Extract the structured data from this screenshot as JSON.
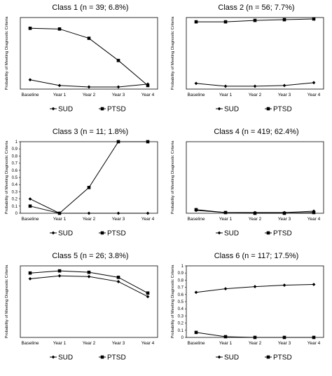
{
  "chart_data": [
    {
      "type": "line",
      "title": "Class 1 (n = 39; 6.8%)",
      "xlabel": "",
      "ylabel": "Probability of Meeting Diagnostic Criteria",
      "categories": [
        "Baseline",
        "Year 1",
        "Year 2",
        "Year 3",
        "Year 4"
      ],
      "ylim": [
        0,
        1
      ],
      "yticks": [],
      "series": [
        {
          "name": "SUD",
          "marker": "diamond",
          "values": [
            0.13,
            0.05,
            0.03,
            0.03,
            0.07
          ]
        },
        {
          "name": "PTSD",
          "marker": "square",
          "values": [
            0.85,
            0.84,
            0.71,
            0.4,
            0.05
          ]
        }
      ],
      "legend": "bottom"
    },
    {
      "type": "line",
      "title": "Class 2 (n = 56; 7.7%)",
      "xlabel": "",
      "ylabel": "Probability of Meeting Diagnostic Criteria",
      "categories": [
        "Baseline",
        "Year 1",
        "Year 2",
        "Year 3",
        "Year 4"
      ],
      "ylim": [
        0,
        1
      ],
      "yticks": [],
      "series": [
        {
          "name": "SUD",
          "marker": "diamond",
          "values": [
            0.08,
            0.04,
            0.04,
            0.05,
            0.09
          ]
        },
        {
          "name": "PTSD",
          "marker": "square",
          "values": [
            0.94,
            0.94,
            0.96,
            0.97,
            0.98
          ]
        }
      ],
      "legend": "bottom"
    },
    {
      "type": "line",
      "title": "Class 3 (n = 11; 1.8%)",
      "xlabel": "",
      "ylabel": "Probability of Meeting Diagnostic Criteria",
      "categories": [
        "Baseline",
        "Year 1",
        "Year 2",
        "Year 3",
        "Year 4"
      ],
      "ylim": [
        0,
        1
      ],
      "yticks": [
        "0",
        "0.1",
        "0.2",
        "0.3",
        "0.4",
        "0.5",
        "0.6",
        "0.7",
        "0.8",
        "0.9",
        "1"
      ],
      "series": [
        {
          "name": "SUD",
          "marker": "diamond",
          "values": [
            0.2,
            0.0,
            0.0,
            0.0,
            0.0
          ]
        },
        {
          "name": "PTSD",
          "marker": "square",
          "values": [
            0.1,
            0.0,
            0.36,
            1.0,
            1.0
          ]
        }
      ],
      "legend": "bottom"
    },
    {
      "type": "line",
      "title": "Class 4 (n = 419; 62.4%)",
      "xlabel": "",
      "ylabel": "Probability of Meeting Diagnostic Criteria",
      "categories": [
        "Baseline",
        "Year 1",
        "Year 2",
        "Year 3",
        "Year 4"
      ],
      "ylim": [
        0,
        1
      ],
      "yticks": [],
      "series": [
        {
          "name": "SUD",
          "marker": "diamond",
          "values": [
            0.04,
            0.01,
            0.01,
            0.01,
            0.03
          ]
        },
        {
          "name": "PTSD",
          "marker": "square",
          "values": [
            0.05,
            0.01,
            0.0,
            0.0,
            0.01
          ]
        }
      ],
      "legend": "bottom"
    },
    {
      "type": "line",
      "title": "Class 5 (n = 26; 3.8%)",
      "xlabel": "",
      "ylabel": "Probability of Meeting Diagnostic Criteria",
      "categories": [
        "Baseline",
        "Year 1",
        "Year 2",
        "Year 3",
        "Year 4"
      ],
      "ylim": [
        0,
        1
      ],
      "yticks": [],
      "series": [
        {
          "name": "SUD",
          "marker": "diamond",
          "values": [
            0.82,
            0.86,
            0.85,
            0.78,
            0.57
          ]
        },
        {
          "name": "PTSD",
          "marker": "square",
          "values": [
            0.9,
            0.93,
            0.91,
            0.84,
            0.62
          ]
        }
      ],
      "legend": "bottom"
    },
    {
      "type": "line",
      "title": "Class 6 (n = 117; 17.5%)",
      "xlabel": "",
      "ylabel": "Probability of Meeting Diagnostic Criteria",
      "categories": [
        "Baseline",
        "Year 1",
        "Year 2",
        "Year 3",
        "Year 4"
      ],
      "ylim": [
        0,
        1
      ],
      "yticks": [
        "0",
        "0.1",
        "0.2",
        "0.3",
        "0.4",
        "0.5",
        "0.6",
        "0.7",
        "0.8",
        "0.9",
        "1"
      ],
      "series": [
        {
          "name": "SUD",
          "marker": "diamond",
          "values": [
            0.63,
            0.68,
            0.71,
            0.73,
            0.74
          ]
        },
        {
          "name": "PTSD",
          "marker": "square",
          "values": [
            0.07,
            0.01,
            0.0,
            0.0,
            0.0
          ]
        }
      ],
      "legend": "bottom"
    }
  ]
}
